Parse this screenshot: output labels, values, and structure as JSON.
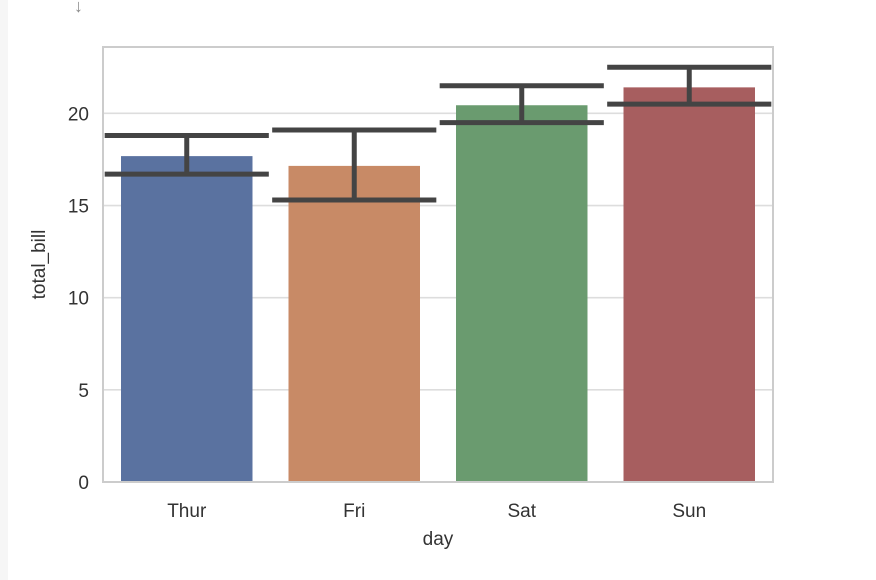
{
  "output_marker": {
    "icon": "down-arrow-icon",
    "glyph": "↓"
  },
  "chart_data": {
    "type": "bar",
    "categories": [
      "Thur",
      "Fri",
      "Sat",
      "Sun"
    ],
    "values": [
      17.68,
      17.15,
      20.44,
      21.41
    ],
    "error_bars": {
      "lower": [
        16.7,
        15.3,
        19.5,
        20.5
      ],
      "upper": [
        18.8,
        19.1,
        21.5,
        22.5
      ]
    },
    "colors": [
      "#5a72a0",
      "#c88a66",
      "#6a9b6f",
      "#a75e5f"
    ],
    "error_color": "#444444",
    "xlabel": "day",
    "ylabel": "total_bill",
    "ylim": [
      0,
      23.6
    ],
    "yticks": [
      0,
      5,
      10,
      15,
      20
    ],
    "grid": true,
    "legend": "none"
  }
}
